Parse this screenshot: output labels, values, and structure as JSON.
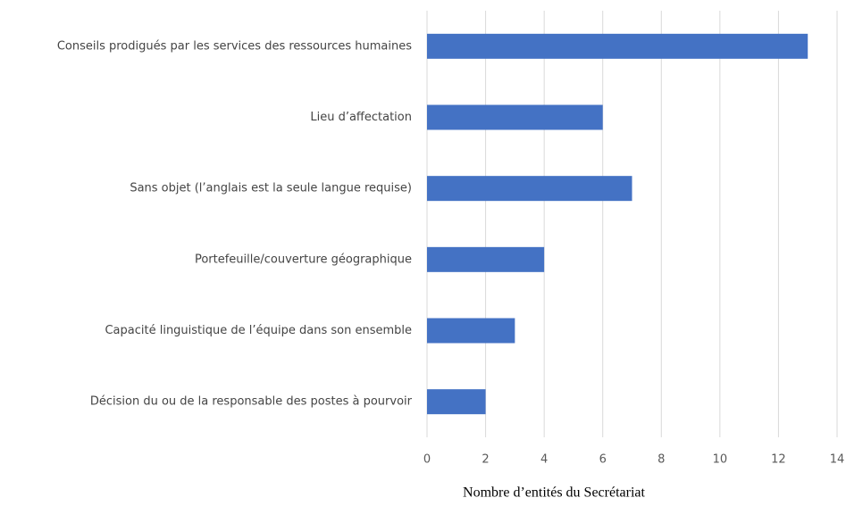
{
  "chart_data": {
    "type": "bar",
    "orientation": "horizontal",
    "categories": [
      "Conseils prodigués par les services des ressources humaines",
      "Lieu d’affectation",
      "Sans objet (l’anglais est la seule langue requise)",
      "Portefeuille/couverture géographique",
      "Capacité linguistique de l’équipe dans son ensemble",
      "Décision du ou de la responsable des postes à pourvoir"
    ],
    "values": [
      13,
      6,
      7,
      4,
      3,
      2
    ],
    "color": "#4472c4",
    "xlabel": "Nombre d’entités du Secrétariat",
    "xlim": [
      0,
      14
    ],
    "xticks": [
      0,
      2,
      4,
      6,
      8,
      10,
      12,
      14
    ],
    "grid": true
  }
}
